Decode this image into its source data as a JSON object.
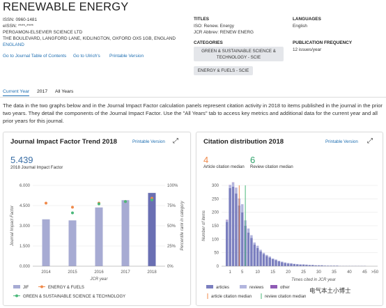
{
  "journal": {
    "title": "RENEWABLE ENERGY",
    "issn": "ISSN: 0960-1481",
    "eissn": "eISSN: ****-****",
    "publisher": "PERGAMON-ELSEVIER SCIENCE LTD",
    "address": "THE BOULEVARD, LANGFORD LANE, KIDLINGTON, OXFORD OX5 1GB, ENGLAND",
    "country": "ENGLAND",
    "links": {
      "toc": "Go to Journal Table of Contents",
      "ulrich": "Go to Ulrich's",
      "print": "Printable Version"
    }
  },
  "info": {
    "titles_label": "TITLES",
    "iso": "ISO: Renew. Energy",
    "jcr_abbrev": "JCR Abbrev: RENEW ENERG",
    "categories_label": "CATEGORIES",
    "category1": "GREEN & SUSTAINABLE SCIENCE & TECHNOLOGY - SCIE",
    "category2": "ENERGY & FUELS - SCIE",
    "languages_label": "LANGUAGES",
    "language": "English",
    "freq_label": "PUBLICATION FREQUENCY",
    "freq": "12 issues/year"
  },
  "tabs": [
    "Current Year",
    "2017",
    "All Years"
  ],
  "description": "The data in the two graphs below and in the Journal Impact Factor calculation panels represent citation activity in 2018 to items published in the journal in the prior two years. They detail the components of the Journal Impact Factor. Use the \"All Years\" tab to access key metrics and additional data for the current year and all prior years for this journal.",
  "jif_panel": {
    "title": "Journal Impact Factor Trend 2018",
    "print": "Printable Version",
    "value": "5.439",
    "value_label": "2018 Journal Impact Factor",
    "legend": {
      "jif": "JIF",
      "energy": "ENERGY & FUELS",
      "green": "GREEN & SUSTAINABLE SCIENCE & TECHNOLOGY"
    }
  },
  "cit_panel": {
    "title": "Citation distribution 2018",
    "print": "Printable Version",
    "article_median": "4",
    "article_median_label": "Article citation median",
    "review_median": "6",
    "review_median_label": "Review citation median",
    "legend": {
      "articles": "articles",
      "reviews": "reviews",
      "other": "other",
      "article_line": "article citation median",
      "review_line": "review citation median"
    }
  },
  "watermark": "电气本土小博士",
  "colors": {
    "link": "#1f6fb2",
    "jif_bar": "#a7abd3",
    "jif_bar_current": "#6a6fb3",
    "energy": "#f08a4b",
    "green": "#4ab87a",
    "articles": "#7b7fbf",
    "reviews": "#b3b6de",
    "other": "#8f5bb5"
  },
  "chart_data": [
    {
      "type": "bar",
      "title": "Journal Impact Factor Trend 2018",
      "categories": [
        "2014",
        "2015",
        "2016",
        "2017",
        "2018"
      ],
      "xlabel": "JCR year",
      "ylabel": "Journal Impact Factor",
      "y2label": "Percentile rank in category",
      "ylim": [
        0,
        6
      ],
      "yticks": [
        "0.000",
        "1.500",
        "3.000",
        "4.500",
        "6.000"
      ],
      "y2ticks": [
        "0%",
        "25%",
        "50%",
        "75%",
        "100%"
      ],
      "series": [
        {
          "name": "JIF",
          "type": "bar",
          "values": [
            3.48,
            3.4,
            4.36,
            4.9,
            5.44
          ]
        },
        {
          "name": "ENERGY & FUELS",
          "type": "scatter",
          "axis": "percentile",
          "values": [
            78,
            73,
            78,
            80,
            84
          ]
        },
        {
          "name": "GREEN & SUSTAINABLE SCIENCE & TECHNOLOGY",
          "type": "scatter",
          "axis": "percentile",
          "values": [
            null,
            66,
            77,
            80,
            82
          ]
        }
      ]
    },
    {
      "type": "bar",
      "title": "Citation distribution 2018",
      "xlabel": "Times cited in JCR year",
      "ylabel": "Number of items",
      "ylim": [
        0,
        300
      ],
      "yticks": [
        "0",
        "50",
        "100",
        "150",
        "200",
        "250",
        "300"
      ],
      "xticks": [
        "1",
        "5",
        "10",
        "15",
        "20",
        "25",
        "30",
        "35",
        "40",
        "45",
        ">50"
      ],
      "x": [
        0,
        1,
        2,
        3,
        4,
        5,
        6,
        7,
        8,
        9,
        10,
        11,
        12,
        13,
        14,
        15,
        16,
        17,
        18,
        19,
        20,
        21,
        22,
        23,
        24,
        25,
        26,
        27,
        28,
        29,
        30,
        31,
        32,
        33,
        34,
        35,
        36,
        37,
        38,
        39,
        40,
        41,
        42,
        43,
        44,
        45
      ],
      "series": [
        {
          "name": "articles",
          "values": [
            165,
            290,
            295,
            270,
            225,
            200,
            150,
            125,
            105,
            80,
            68,
            55,
            45,
            38,
            32,
            26,
            22,
            18,
            15,
            12,
            10,
            9,
            8,
            7,
            6,
            6,
            5,
            4,
            4,
            3,
            3,
            3,
            2,
            2,
            2,
            2,
            2,
            1,
            1,
            1,
            1,
            1,
            1,
            1,
            1,
            1
          ]
        },
        {
          "name": "reviews",
          "values": [
            5,
            10,
            15,
            20,
            25,
            30,
            20,
            15,
            10,
            8,
            8,
            6,
            5,
            4,
            4,
            3,
            3,
            2,
            2,
            2,
            2,
            2,
            1,
            1,
            1,
            1,
            1,
            1,
            1,
            1,
            1,
            1,
            1,
            0,
            0,
            0,
            0,
            0,
            0,
            0,
            0,
            0,
            0,
            0,
            0,
            0
          ]
        },
        {
          "name": "other",
          "values": [
            2,
            1,
            1,
            1,
            1,
            0,
            0,
            0,
            0,
            0,
            0,
            0,
            0,
            0,
            0,
            0,
            0,
            0,
            0,
            0,
            0,
            0,
            0,
            0,
            0,
            0,
            0,
            0,
            0,
            0,
            0,
            0,
            0,
            0,
            0,
            0,
            0,
            0,
            0,
            0,
            0,
            0,
            0,
            0,
            0,
            0
          ]
        }
      ],
      "medians": {
        "article citation median": 4,
        "review citation median": 6
      }
    }
  ]
}
